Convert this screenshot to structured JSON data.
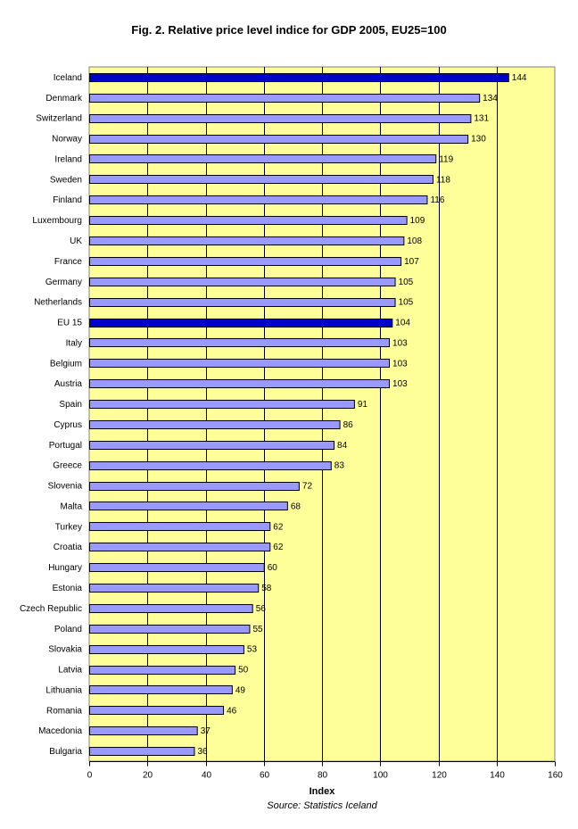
{
  "chart_data": {
    "type": "bar",
    "orientation": "horizontal",
    "title": "Fig. 2. Relative price level indice for GDP 2005,  EU25=100",
    "xlabel": "Index",
    "source": "Source: Statistics Iceland",
    "xlim": [
      0,
      160
    ],
    "xticks": [
      0,
      20,
      40,
      60,
      80,
      100,
      120,
      140,
      160
    ],
    "grid": "vertical",
    "legend": "none",
    "plot_background": "#ffff99",
    "bar_color": "#9999ff",
    "highlight_color": "#0000cc",
    "highlighted": [
      "Iceland",
      "EU 15"
    ],
    "categories": [
      "Iceland",
      "Denmark",
      "Switzerland",
      "Norway",
      "Ireland",
      "Sweden",
      "Finland",
      "Luxembourg",
      "UK",
      "France",
      "Germany",
      "Netherlands",
      "EU 15",
      "Italy",
      "Belgium",
      "Austria",
      "Spain",
      "Cyprus",
      "Portugal",
      "Greece",
      "Slovenia",
      "Malta",
      "Turkey",
      "Croatia",
      "Hungary",
      "Estonia",
      "Czech Republic",
      "Poland",
      "Slovakia",
      "Latvia",
      "Lithuania",
      "Romania",
      "Macedonia",
      "Bulgaria"
    ],
    "values": [
      144,
      134,
      131,
      130,
      119,
      118,
      116,
      109,
      108,
      107,
      105,
      105,
      104,
      103,
      103,
      103,
      91,
      86,
      84,
      83,
      72,
      68,
      62,
      62,
      60,
      58,
      56,
      55,
      53,
      50,
      49,
      46,
      37,
      36
    ]
  }
}
